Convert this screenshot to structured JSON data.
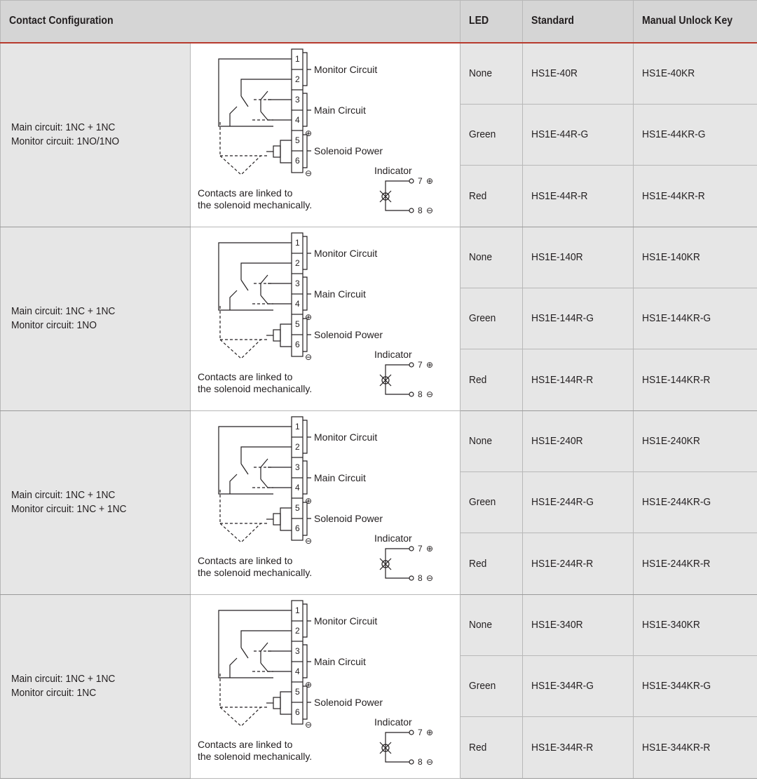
{
  "headers": {
    "config": "Contact Configuration",
    "led": "LED",
    "standard": "Standard",
    "manual": "Manual Unlock Key"
  },
  "diagram_labels": {
    "monitor": "Monitor Circuit",
    "main": "Main Circuit",
    "solenoid": "Solenoid Power",
    "indicator": "Indicator",
    "note_line1": "Contacts are linked to",
    "note_line2": "the solenoid mechanically.",
    "t1": "1",
    "t2": "2",
    "t3": "3",
    "t4": "4",
    "t5": "5",
    "t6": "6",
    "t7": "7",
    "t8": "8",
    "plus": "⊕",
    "minus": "⊖"
  },
  "groups": [
    {
      "config_line1": "Main circuit: 1NC + 1NC",
      "config_line2": "Monitor circuit: 1NO/1NO",
      "rows": [
        {
          "led": "None",
          "standard": "HS1E-40R",
          "manual": "HS1E-40KR"
        },
        {
          "led": "Green",
          "standard": "HS1E-44R-G",
          "manual": "HS1E-44KR-G"
        },
        {
          "led": "Red",
          "standard": "HS1E-44R-R",
          "manual": "HS1E-44KR-R"
        }
      ]
    },
    {
      "config_line1": "Main circuit: 1NC + 1NC",
      "config_line2": "Monitor circuit: 1NO",
      "rows": [
        {
          "led": "None",
          "standard": "HS1E-140R",
          "manual": "HS1E-140KR"
        },
        {
          "led": "Green",
          "standard": "HS1E-144R-G",
          "manual": "HS1E-144KR-G"
        },
        {
          "led": "Red",
          "standard": "HS1E-144R-R",
          "manual": "HS1E-144KR-R"
        }
      ]
    },
    {
      "config_line1": "Main circuit: 1NC + 1NC",
      "config_line2": "Monitor circuit: 1NC + 1NC",
      "rows": [
        {
          "led": "None",
          "standard": "HS1E-240R",
          "manual": "HS1E-240KR"
        },
        {
          "led": "Green",
          "standard": "HS1E-244R-G",
          "manual": "HS1E-244KR-G"
        },
        {
          "led": "Red",
          "standard": "HS1E-244R-R",
          "manual": "HS1E-244KR-R"
        }
      ]
    },
    {
      "config_line1": "Main circuit: 1NC + 1NC",
      "config_line2": "Monitor circuit: 1NC",
      "rows": [
        {
          "led": "None",
          "standard": "HS1E-340R",
          "manual": "HS1E-340KR"
        },
        {
          "led": "Green",
          "standard": "HS1E-344R-G",
          "manual": "HS1E-344KR-G"
        },
        {
          "led": "Red",
          "standard": "HS1E-344R-R",
          "manual": "HS1E-344KR-R"
        }
      ]
    }
  ]
}
